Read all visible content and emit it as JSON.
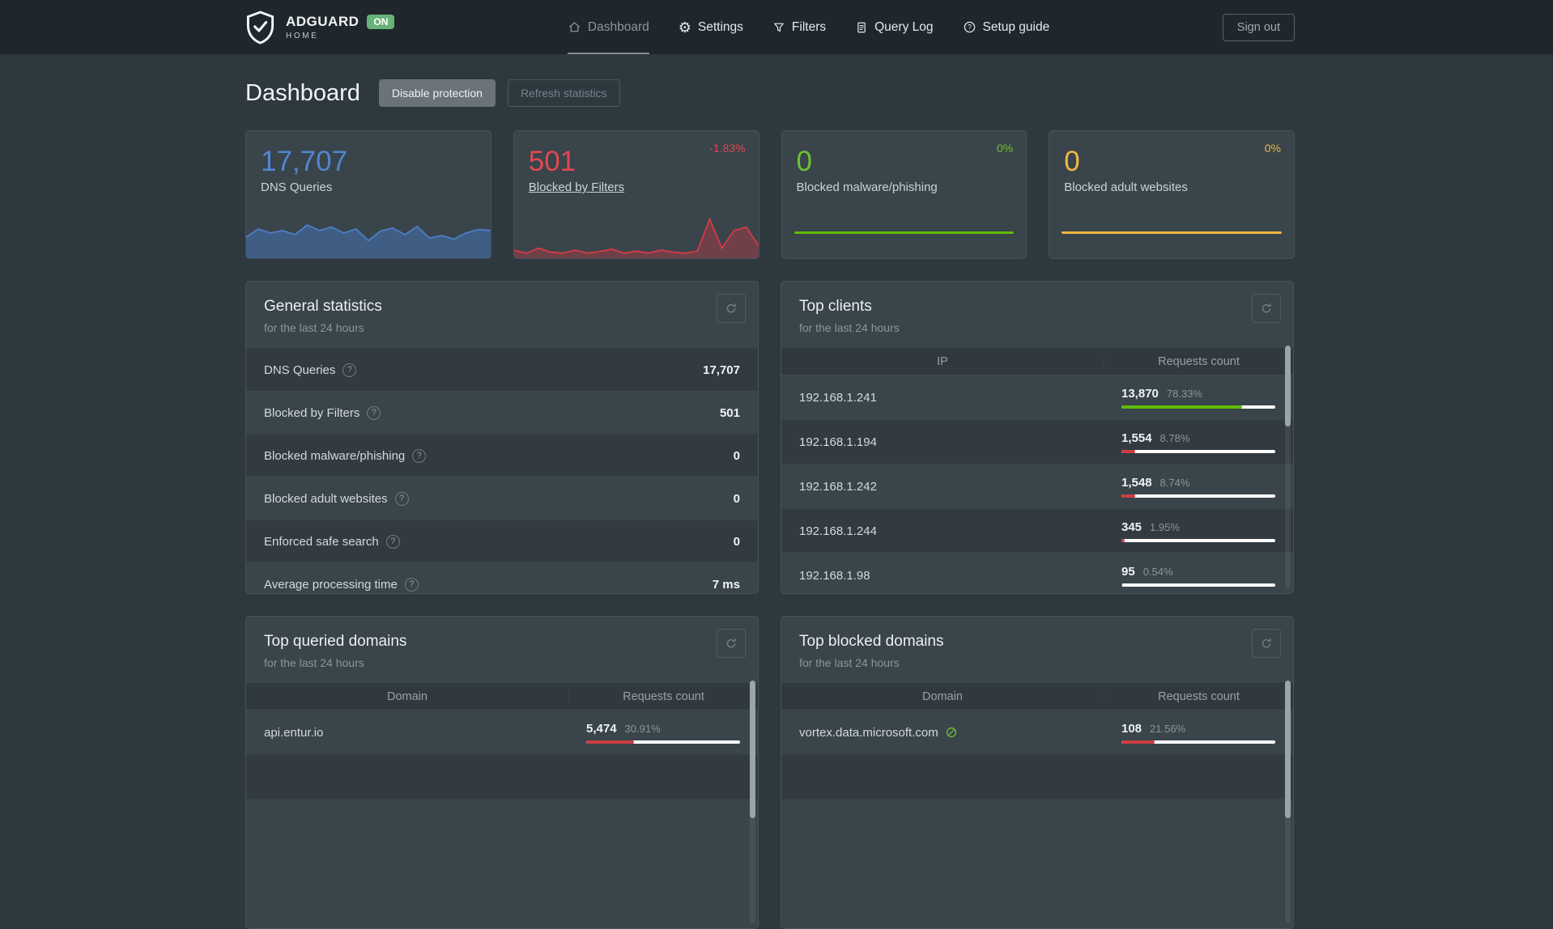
{
  "navbar": {
    "brand": {
      "name": "ADGUARD",
      "sub": "HOME",
      "badge": "ON"
    },
    "items": [
      {
        "label": "Dashboard",
        "active": true
      },
      {
        "label": "Settings",
        "active": false
      },
      {
        "label": "Filters",
        "active": false
      },
      {
        "label": "Query Log",
        "active": false
      },
      {
        "label": "Setup guide",
        "active": false
      }
    ],
    "sign_out": "Sign out"
  },
  "page": {
    "title": "Dashboard",
    "disable_button": "Disable protection",
    "refresh_button": "Refresh statistics"
  },
  "stat_cards": [
    {
      "value": "17,707",
      "label": "DNS Queries",
      "percent": "",
      "color": "#5286d1",
      "chart": {
        "line": "#4a7fc9",
        "fill": "rgba(74,127,201,0.45)",
        "points": [
          0.42,
          0.58,
          0.5,
          0.55,
          0.47,
          0.66,
          0.55,
          0.62,
          0.5,
          0.58,
          0.35,
          0.54,
          0.6,
          0.47,
          0.63,
          0.4,
          0.45,
          0.38,
          0.5,
          0.57,
          0.55
        ]
      }
    },
    {
      "value": "501",
      "label": "Blocked by Filters",
      "percent": "-1.83%",
      "color": "#e2484f",
      "label_link": true,
      "chart": {
        "line": "#d63a45",
        "fill": "rgba(214,58,69,0.35)",
        "points": [
          0.16,
          0.1,
          0.2,
          0.12,
          0.1,
          0.16,
          0.1,
          0.13,
          0.18,
          0.1,
          0.14,
          0.1,
          0.16,
          0.12,
          0.1,
          0.14,
          0.78,
          0.2,
          0.55,
          0.62,
          0.25
        ]
      }
    },
    {
      "value": "0",
      "label": "Blocked malware/phishing",
      "percent": "0%",
      "color": "#6fc22c",
      "flat_line": "#5eba00"
    },
    {
      "value": "0",
      "label": "Blocked adult websites",
      "percent": "0%",
      "color": "#efb942",
      "flat_line": "#f0b63c"
    }
  ],
  "general_statistics": {
    "title": "General statistics",
    "subtitle": "for the last 24 hours",
    "rows": [
      {
        "label": "DNS Queries",
        "value": "17,707"
      },
      {
        "label": "Blocked by Filters",
        "value": "501"
      },
      {
        "label": "Blocked malware/phishing",
        "value": "0"
      },
      {
        "label": "Blocked adult websites",
        "value": "0"
      },
      {
        "label": "Enforced safe search",
        "value": "0"
      },
      {
        "label": "Average processing time",
        "value": "7 ms"
      }
    ]
  },
  "top_clients": {
    "title": "Top clients",
    "subtitle": "for the last 24 hours",
    "columns": [
      "IP",
      "Requests count"
    ],
    "rows": [
      {
        "ip": "192.168.1.241",
        "count": "13,870",
        "percent": "78.33%",
        "fill": 78.33,
        "bar_color": "#5eba00"
      },
      {
        "ip": "192.168.1.194",
        "count": "1,554",
        "percent": "8.78%",
        "fill": 8.78,
        "bar_color": "#cd3d44"
      },
      {
        "ip": "192.168.1.242",
        "count": "1,548",
        "percent": "8.74%",
        "fill": 8.74,
        "bar_color": "#cd3d44"
      },
      {
        "ip": "192.168.1.244",
        "count": "345",
        "percent": "1.95%",
        "fill": 1.95,
        "bar_color": "#cd3d44"
      },
      {
        "ip": "192.168.1.98",
        "count": "95",
        "percent": "0.54%",
        "fill": 0.54,
        "bar_color": "#cd3d44"
      }
    ]
  },
  "top_queried": {
    "title": "Top queried domains",
    "subtitle": "for the last 24 hours",
    "columns": [
      "Domain",
      "Requests count"
    ],
    "rows": [
      {
        "domain": "api.entur.io",
        "count": "5,474",
        "percent": "30.91%",
        "fill": 30.91,
        "bar_color": "#cd3d44"
      }
    ]
  },
  "top_blocked": {
    "title": "Top blocked domains",
    "subtitle": "for the last 24 hours",
    "columns": [
      "Domain",
      "Requests count"
    ],
    "rows": [
      {
        "domain": "vortex.data.microsoft.com",
        "count": "108",
        "percent": "21.56%",
        "fill": 21.56,
        "bar_color": "#cd3d44",
        "blocked_icon": true
      }
    ]
  }
}
